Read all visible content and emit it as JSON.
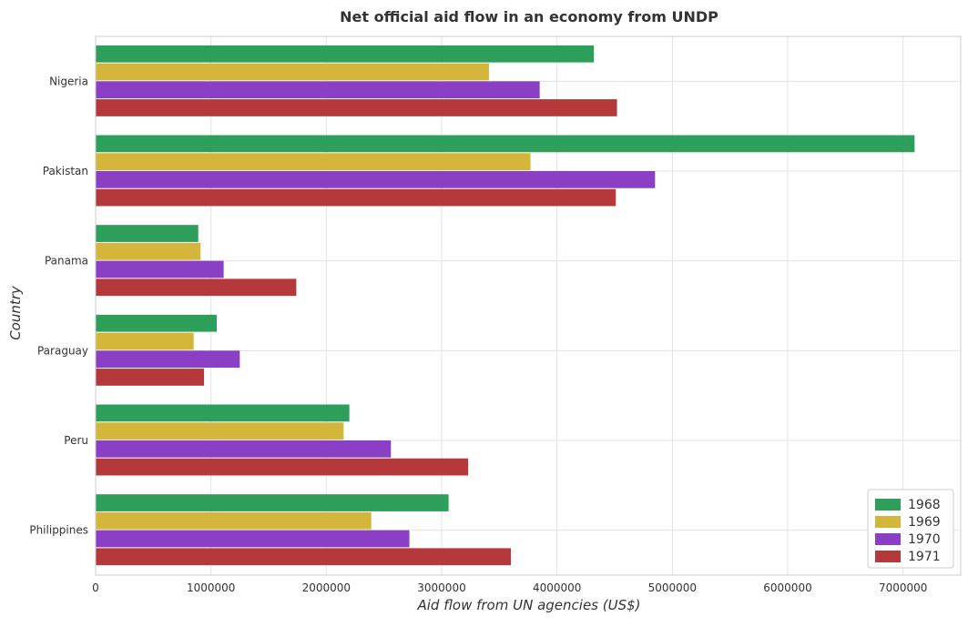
{
  "chart_data": {
    "type": "bar",
    "orientation": "horizontal",
    "title": "Net official aid flow in an economy from UNDP",
    "xlabel": "Aid flow from UN agencies (US$)",
    "ylabel": "Country",
    "categories": [
      "Nigeria",
      "Pakistan",
      "Panama",
      "Paraguay",
      "Peru",
      "Philippines"
    ],
    "series": [
      {
        "name": "1968",
        "color": "#2e9e5b",
        "values": [
          4320000,
          7100000,
          890000,
          1050000,
          2200000,
          3060000
        ]
      },
      {
        "name": "1969",
        "color": "#d4b63a",
        "values": [
          3410000,
          3770000,
          910000,
          850000,
          2150000,
          2390000
        ]
      },
      {
        "name": "1970",
        "color": "#8b3fc4",
        "values": [
          3850000,
          4850000,
          1110000,
          1250000,
          2560000,
          2720000
        ]
      },
      {
        "name": "1971",
        "color": "#b5383a",
        "values": [
          4520000,
          4510000,
          1740000,
          940000,
          3230000,
          3600000
        ]
      }
    ],
    "xlim": [
      0,
      7500000
    ],
    "xticks": [
      0,
      1000000,
      2000000,
      3000000,
      4000000,
      5000000,
      6000000,
      7000000
    ],
    "xtick_labels": [
      "0",
      "1000000",
      "2000000",
      "3000000",
      "4000000",
      "5000000",
      "6000000",
      "7000000"
    ],
    "grid": true,
    "legend_position": "bottom-right"
  }
}
